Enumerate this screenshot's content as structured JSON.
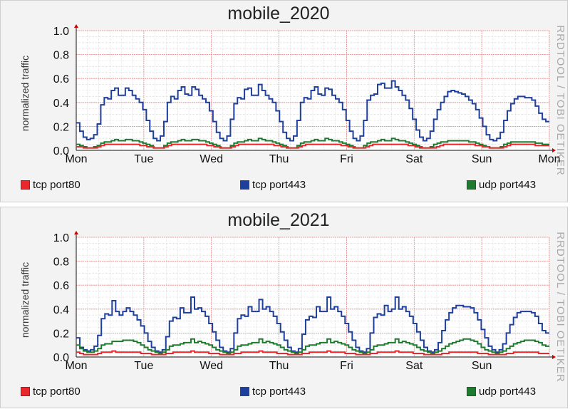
{
  "watermark": "RRDTOOL / TOBI OETIKER",
  "colors": {
    "tcp_port80": "#e8282a",
    "tcp_port443": "#1f3f9c",
    "udp_port443": "#1e7a2e",
    "grid": "#f2a0a0",
    "background": "#ffffff"
  },
  "chart_data": [
    {
      "type": "line",
      "title": "mobile_2020",
      "ylabel": "normalized traffic",
      "ylim": [
        0,
        1.0
      ],
      "yticks": [
        "0.0",
        "0.2",
        "0.4",
        "0.6",
        "0.8",
        "1.0"
      ],
      "xticks": [
        "Mon",
        "Tue",
        "Wed",
        "Thu",
        "Fri",
        "Sat",
        "Sun",
        "Mon"
      ],
      "legend": [
        "tcp port80",
        "tcp port443",
        "udp port443"
      ],
      "series": [
        {
          "name": "tcp port443",
          "color": "#1f3f9c",
          "values": [
            0.23,
            0.16,
            0.11,
            0.09,
            0.1,
            0.13,
            0.22,
            0.38,
            0.44,
            0.43,
            0.5,
            0.52,
            0.46,
            0.46,
            0.52,
            0.5,
            0.46,
            0.43,
            0.4,
            0.34,
            0.25,
            0.16,
            0.1,
            0.08,
            0.12,
            0.24,
            0.4,
            0.45,
            0.43,
            0.5,
            0.53,
            0.47,
            0.46,
            0.53,
            0.51,
            0.46,
            0.43,
            0.4,
            0.33,
            0.24,
            0.15,
            0.1,
            0.08,
            0.12,
            0.26,
            0.39,
            0.44,
            0.43,
            0.51,
            0.52,
            0.46,
            0.46,
            0.55,
            0.5,
            0.46,
            0.43,
            0.4,
            0.33,
            0.24,
            0.15,
            0.1,
            0.08,
            0.12,
            0.25,
            0.4,
            0.44,
            0.43,
            0.5,
            0.53,
            0.47,
            0.46,
            0.52,
            0.51,
            0.46,
            0.43,
            0.4,
            0.34,
            0.25,
            0.16,
            0.1,
            0.08,
            0.12,
            0.25,
            0.42,
            0.46,
            0.47,
            0.55,
            0.56,
            0.52,
            0.52,
            0.58,
            0.53,
            0.5,
            0.46,
            0.42,
            0.35,
            0.26,
            0.17,
            0.11,
            0.08,
            0.1,
            0.16,
            0.26,
            0.34,
            0.4,
            0.45,
            0.49,
            0.5,
            0.49,
            0.48,
            0.47,
            0.45,
            0.42,
            0.39,
            0.34,
            0.27,
            0.2,
            0.13,
            0.09,
            0.08,
            0.1,
            0.15,
            0.25,
            0.33,
            0.39,
            0.43,
            0.45,
            0.45,
            0.44,
            0.44,
            0.42,
            0.37,
            0.31,
            0.26,
            0.24
          ]
        },
        {
          "name": "udp port443",
          "color": "#1e7a2e",
          "values": [
            0.05,
            0.04,
            0.03,
            0.02,
            0.02,
            0.03,
            0.04,
            0.06,
            0.07,
            0.07,
            0.08,
            0.09,
            0.08,
            0.08,
            0.09,
            0.09,
            0.08,
            0.08,
            0.07,
            0.06,
            0.05,
            0.04,
            0.02,
            0.02,
            0.02,
            0.04,
            0.06,
            0.07,
            0.07,
            0.08,
            0.09,
            0.08,
            0.08,
            0.09,
            0.09,
            0.08,
            0.08,
            0.07,
            0.06,
            0.05,
            0.04,
            0.02,
            0.02,
            0.02,
            0.04,
            0.06,
            0.07,
            0.07,
            0.08,
            0.09,
            0.08,
            0.08,
            0.1,
            0.09,
            0.08,
            0.08,
            0.07,
            0.06,
            0.05,
            0.04,
            0.02,
            0.02,
            0.02,
            0.04,
            0.06,
            0.07,
            0.07,
            0.08,
            0.09,
            0.08,
            0.08,
            0.1,
            0.09,
            0.08,
            0.08,
            0.07,
            0.06,
            0.05,
            0.04,
            0.02,
            0.02,
            0.02,
            0.04,
            0.06,
            0.07,
            0.07,
            0.08,
            0.09,
            0.08,
            0.08,
            0.1,
            0.09,
            0.08,
            0.08,
            0.07,
            0.06,
            0.05,
            0.04,
            0.02,
            0.02,
            0.02,
            0.03,
            0.05,
            0.06,
            0.07,
            0.07,
            0.08,
            0.08,
            0.08,
            0.08,
            0.08,
            0.08,
            0.07,
            0.07,
            0.06,
            0.05,
            0.04,
            0.03,
            0.02,
            0.02,
            0.02,
            0.03,
            0.05,
            0.06,
            0.07,
            0.07,
            0.07,
            0.07,
            0.07,
            0.07,
            0.07,
            0.06,
            0.06,
            0.05,
            0.05
          ]
        },
        {
          "name": "tcp port80",
          "color": "#e8282a",
          "values": [
            0.03,
            0.03,
            0.02,
            0.02,
            0.02,
            0.02,
            0.03,
            0.04,
            0.05,
            0.05,
            0.05,
            0.05,
            0.05,
            0.05,
            0.05,
            0.05,
            0.05,
            0.05,
            0.04,
            0.04,
            0.03,
            0.03,
            0.02,
            0.02,
            0.02,
            0.03,
            0.04,
            0.05,
            0.05,
            0.05,
            0.05,
            0.05,
            0.05,
            0.05,
            0.05,
            0.05,
            0.05,
            0.04,
            0.04,
            0.03,
            0.03,
            0.02,
            0.02,
            0.02,
            0.03,
            0.04,
            0.05,
            0.05,
            0.05,
            0.05,
            0.05,
            0.05,
            0.05,
            0.05,
            0.05,
            0.05,
            0.04,
            0.04,
            0.03,
            0.03,
            0.02,
            0.02,
            0.02,
            0.03,
            0.04,
            0.05,
            0.05,
            0.05,
            0.05,
            0.05,
            0.05,
            0.05,
            0.05,
            0.05,
            0.05,
            0.04,
            0.04,
            0.03,
            0.03,
            0.02,
            0.02,
            0.02,
            0.03,
            0.04,
            0.05,
            0.05,
            0.05,
            0.05,
            0.05,
            0.05,
            0.05,
            0.05,
            0.05,
            0.05,
            0.04,
            0.04,
            0.03,
            0.03,
            0.02,
            0.02,
            0.02,
            0.02,
            0.03,
            0.04,
            0.05,
            0.05,
            0.05,
            0.05,
            0.05,
            0.05,
            0.05,
            0.05,
            0.05,
            0.04,
            0.04,
            0.03,
            0.03,
            0.02,
            0.02,
            0.02,
            0.02,
            0.03,
            0.04,
            0.05,
            0.05,
            0.05,
            0.05,
            0.05,
            0.05,
            0.05,
            0.04,
            0.04,
            0.04,
            0.04
          ]
        }
      ]
    },
    {
      "type": "line",
      "title": "mobile_2021",
      "ylabel": "normalized traffic",
      "ylim": [
        0,
        1.0
      ],
      "yticks": [
        "0.0",
        "0.2",
        "0.4",
        "0.6",
        "0.8",
        "1.0"
      ],
      "xticks": [
        "Mon",
        "Tue",
        "Wed",
        "Thu",
        "Fri",
        "Sat",
        "Sun"
      ],
      "legend": [
        "tcp port80",
        "tcp port443",
        "udp port443"
      ],
      "series": [
        {
          "name": "tcp port443",
          "color": "#1f3f9c",
          "values": [
            0.16,
            0.08,
            0.06,
            0.05,
            0.06,
            0.09,
            0.18,
            0.32,
            0.36,
            0.35,
            0.47,
            0.38,
            0.35,
            0.38,
            0.41,
            0.38,
            0.35,
            0.31,
            0.26,
            0.2,
            0.13,
            0.08,
            0.05,
            0.04,
            0.06,
            0.17,
            0.3,
            0.33,
            0.32,
            0.41,
            0.37,
            0.37,
            0.5,
            0.4,
            0.41,
            0.38,
            0.34,
            0.28,
            0.21,
            0.14,
            0.08,
            0.05,
            0.04,
            0.07,
            0.2,
            0.32,
            0.35,
            0.34,
            0.42,
            0.38,
            0.38,
            0.48,
            0.4,
            0.42,
            0.38,
            0.34,
            0.28,
            0.21,
            0.14,
            0.08,
            0.05,
            0.04,
            0.07,
            0.19,
            0.31,
            0.34,
            0.33,
            0.42,
            0.38,
            0.38,
            0.5,
            0.4,
            0.42,
            0.38,
            0.34,
            0.28,
            0.21,
            0.14,
            0.08,
            0.05,
            0.04,
            0.07,
            0.2,
            0.33,
            0.36,
            0.35,
            0.43,
            0.38,
            0.4,
            0.5,
            0.4,
            0.42,
            0.38,
            0.34,
            0.28,
            0.21,
            0.14,
            0.08,
            0.05,
            0.04,
            0.06,
            0.12,
            0.22,
            0.31,
            0.37,
            0.41,
            0.43,
            0.43,
            0.42,
            0.42,
            0.41,
            0.37,
            0.31,
            0.23,
            0.16,
            0.09,
            0.06,
            0.04,
            0.06,
            0.11,
            0.2,
            0.27,
            0.33,
            0.37,
            0.38,
            0.38,
            0.38,
            0.37,
            0.34,
            0.28,
            0.22,
            0.2
          ]
        },
        {
          "name": "udp port443",
          "color": "#1e7a2e",
          "values": [
            0.1,
            0.07,
            0.05,
            0.04,
            0.04,
            0.05,
            0.07,
            0.1,
            0.11,
            0.11,
            0.13,
            0.13,
            0.13,
            0.14,
            0.14,
            0.14,
            0.13,
            0.12,
            0.1,
            0.08,
            0.06,
            0.05,
            0.04,
            0.03,
            0.04,
            0.06,
            0.09,
            0.1,
            0.1,
            0.11,
            0.12,
            0.12,
            0.15,
            0.12,
            0.13,
            0.12,
            0.11,
            0.1,
            0.08,
            0.06,
            0.05,
            0.04,
            0.03,
            0.04,
            0.06,
            0.09,
            0.1,
            0.1,
            0.11,
            0.12,
            0.12,
            0.15,
            0.12,
            0.13,
            0.12,
            0.11,
            0.1,
            0.08,
            0.06,
            0.05,
            0.04,
            0.03,
            0.04,
            0.06,
            0.09,
            0.1,
            0.1,
            0.11,
            0.12,
            0.12,
            0.15,
            0.12,
            0.13,
            0.12,
            0.11,
            0.1,
            0.08,
            0.06,
            0.05,
            0.04,
            0.03,
            0.04,
            0.06,
            0.09,
            0.1,
            0.1,
            0.11,
            0.12,
            0.12,
            0.15,
            0.12,
            0.13,
            0.12,
            0.11,
            0.1,
            0.08,
            0.06,
            0.05,
            0.04,
            0.03,
            0.04,
            0.05,
            0.07,
            0.09,
            0.11,
            0.12,
            0.13,
            0.14,
            0.15,
            0.15,
            0.14,
            0.13,
            0.11,
            0.08,
            0.06,
            0.05,
            0.04,
            0.03,
            0.04,
            0.05,
            0.07,
            0.09,
            0.11,
            0.12,
            0.13,
            0.14,
            0.14,
            0.14,
            0.13,
            0.12,
            0.1,
            0.09
          ]
        },
        {
          "name": "tcp port80",
          "color": "#e8282a",
          "values": [
            0.04,
            0.03,
            0.02,
            0.02,
            0.02,
            0.02,
            0.03,
            0.04,
            0.04,
            0.04,
            0.05,
            0.04,
            0.04,
            0.04,
            0.04,
            0.04,
            0.04,
            0.04,
            0.03,
            0.03,
            0.03,
            0.02,
            0.02,
            0.02,
            0.02,
            0.03,
            0.03,
            0.04,
            0.04,
            0.04,
            0.04,
            0.04,
            0.05,
            0.04,
            0.04,
            0.04,
            0.04,
            0.03,
            0.03,
            0.03,
            0.02,
            0.02,
            0.02,
            0.02,
            0.03,
            0.03,
            0.04,
            0.04,
            0.04,
            0.04,
            0.04,
            0.05,
            0.04,
            0.04,
            0.04,
            0.04,
            0.03,
            0.03,
            0.03,
            0.02,
            0.02,
            0.02,
            0.02,
            0.03,
            0.03,
            0.04,
            0.04,
            0.04,
            0.04,
            0.04,
            0.05,
            0.04,
            0.04,
            0.04,
            0.04,
            0.03,
            0.03,
            0.03,
            0.02,
            0.02,
            0.02,
            0.02,
            0.03,
            0.03,
            0.04,
            0.04,
            0.04,
            0.04,
            0.04,
            0.05,
            0.04,
            0.04,
            0.04,
            0.04,
            0.03,
            0.03,
            0.03,
            0.02,
            0.02,
            0.02,
            0.02,
            0.02,
            0.03,
            0.03,
            0.04,
            0.04,
            0.04,
            0.04,
            0.04,
            0.04,
            0.04,
            0.04,
            0.03,
            0.03,
            0.03,
            0.02,
            0.02,
            0.02,
            0.02,
            0.02,
            0.03,
            0.03,
            0.04,
            0.04,
            0.04,
            0.04,
            0.04,
            0.04,
            0.04,
            0.03,
            0.03,
            0.03
          ]
        }
      ]
    }
  ]
}
